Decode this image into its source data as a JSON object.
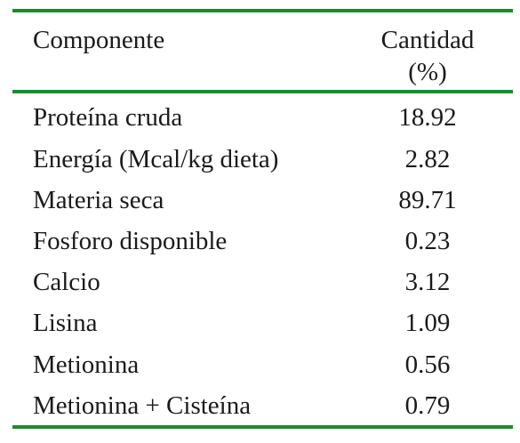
{
  "table": {
    "header": {
      "component": "Componente",
      "amount_line1": "Cantidad",
      "amount_line2": "(%)"
    },
    "rows": [
      {
        "name": "Proteína cruda",
        "value": "18.92"
      },
      {
        "name": "Energía (Mcal/kg dieta)",
        "value": "2.82"
      },
      {
        "name": "Materia seca",
        "value": "89.71"
      },
      {
        "name": "Fosforo disponible",
        "value": "0.23"
      },
      {
        "name": "Calcio",
        "value": "3.12"
      },
      {
        "name": "Lisina",
        "value": "1.09"
      },
      {
        "name": "Metionina",
        "value": "0.56"
      },
      {
        "name": "Metionina + Cisteína",
        "value": "0.79"
      }
    ]
  },
  "colors": {
    "rule": "#1e8a2e",
    "text": "#1a1a1a"
  }
}
